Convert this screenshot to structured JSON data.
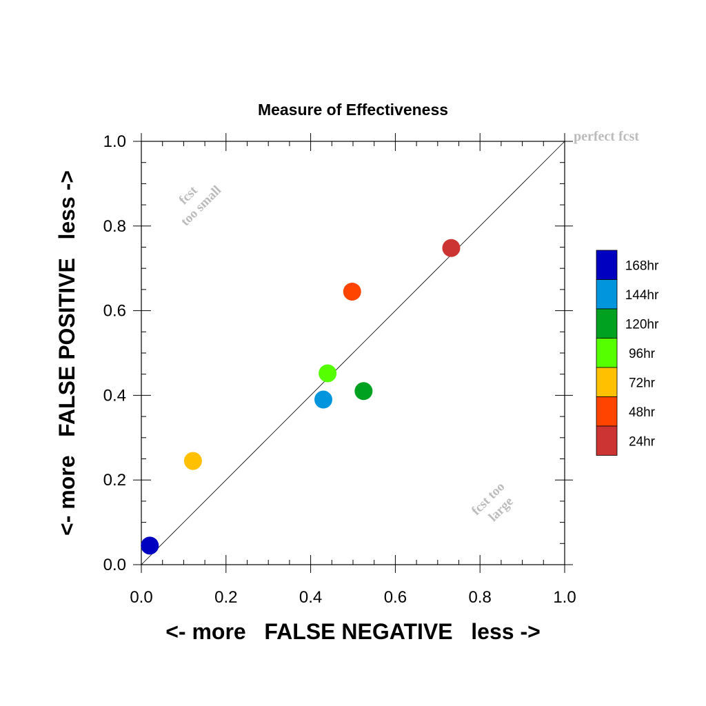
{
  "chart_data": {
    "type": "scatter",
    "title": "Measure of Effectiveness",
    "xlabel": "<- more   FALSE NEGATIVE   less ->",
    "ylabel": "<- more   FALSE POSITIVE   less ->",
    "xlim": [
      0,
      1
    ],
    "ylim": [
      0,
      1
    ],
    "x_ticks": [
      "0.0",
      "0.2",
      "0.4",
      "0.6",
      "0.8",
      "1.0"
    ],
    "y_ticks": [
      "0.0",
      "0.2",
      "0.4",
      "0.6",
      "0.8",
      "1.0"
    ],
    "grid": false,
    "reference_line": {
      "from": [
        0,
        0
      ],
      "to": [
        1,
        1
      ],
      "label": "perfect fcst"
    },
    "annotations": [
      {
        "lines": [
          "fcst",
          "too small"
        ],
        "position": "upper-left"
      },
      {
        "lines": [
          "fcst too",
          "large"
        ],
        "position": "lower-right"
      }
    ],
    "legend_position": "right",
    "series": [
      {
        "name": "168hr",
        "x": 0.02,
        "y": 0.045,
        "color": "#0000c0"
      },
      {
        "name": "144hr",
        "x": 0.43,
        "y": 0.39,
        "color": "#0095dd"
      },
      {
        "name": "120hr",
        "x": 0.525,
        "y": 0.41,
        "color": "#00a020"
      },
      {
        "name": "96hr",
        "x": 0.44,
        "y": 0.452,
        "color": "#55ff00"
      },
      {
        "name": "72hr",
        "x": 0.122,
        "y": 0.245,
        "color": "#ffc000"
      },
      {
        "name": "48hr",
        "x": 0.498,
        "y": 0.645,
        "color": "#ff4400"
      },
      {
        "name": "24hr",
        "x": 0.732,
        "y": 0.748,
        "color": "#cc3333"
      }
    ]
  }
}
